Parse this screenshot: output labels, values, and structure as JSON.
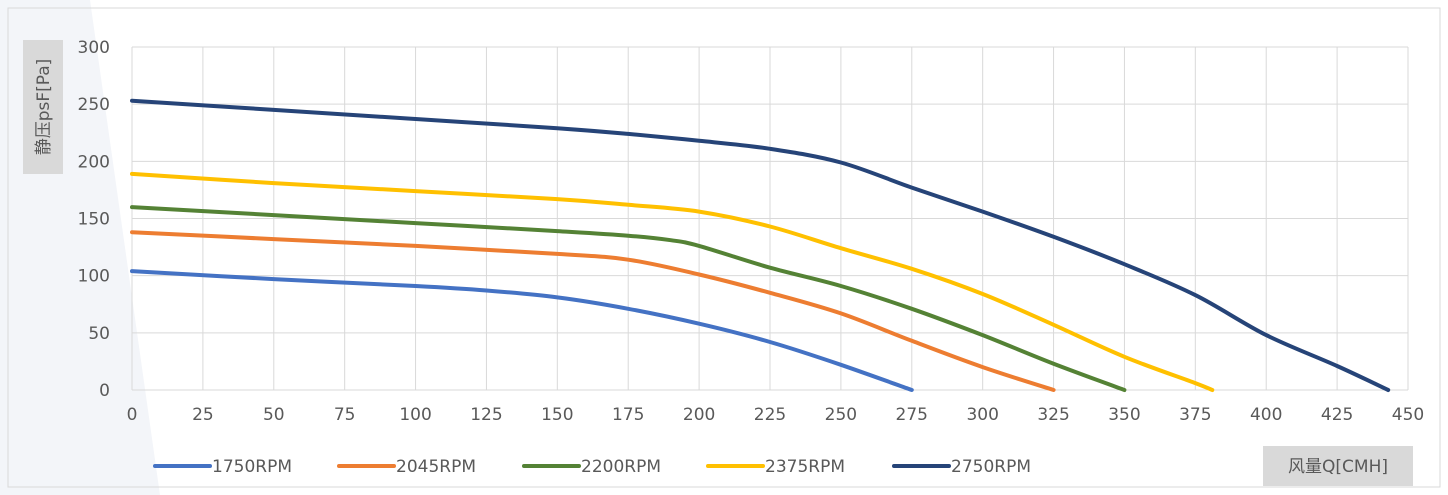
{
  "chart_data": {
    "type": "line",
    "xlabel": "风量Q[CMH]",
    "ylabel": "静压psF[Pa]",
    "xlim": [
      0,
      450
    ],
    "ylim": [
      0,
      300
    ],
    "xticks": [
      0,
      25,
      50,
      75,
      100,
      125,
      150,
      175,
      200,
      225,
      250,
      275,
      300,
      325,
      350,
      375,
      400,
      425,
      450
    ],
    "yticks": [
      0,
      50,
      100,
      150,
      200,
      250,
      300
    ],
    "grid": true,
    "legend_position": "bottom",
    "series": [
      {
        "name": "1750RPM",
        "color": "#4472C4",
        "points": [
          [
            0,
            104
          ],
          [
            50,
            97
          ],
          [
            100,
            91
          ],
          [
            125,
            87
          ],
          [
            150,
            81
          ],
          [
            175,
            71
          ],
          [
            200,
            58
          ],
          [
            225,
            42
          ],
          [
            250,
            22
          ],
          [
            275,
            0
          ]
        ]
      },
      {
        "name": "2045RPM",
        "color": "#ED7D31",
        "points": [
          [
            0,
            138
          ],
          [
            50,
            132
          ],
          [
            100,
            126
          ],
          [
            150,
            119
          ],
          [
            175,
            114
          ],
          [
            200,
            101
          ],
          [
            225,
            85
          ],
          [
            250,
            67
          ],
          [
            275,
            43
          ],
          [
            300,
            20
          ],
          [
            325,
            0
          ]
        ]
      },
      {
        "name": "2200RPM",
        "color": "#548235",
        "points": [
          [
            0,
            160
          ],
          [
            50,
            153
          ],
          [
            100,
            146
          ],
          [
            150,
            139
          ],
          [
            175,
            135
          ],
          [
            190,
            131
          ],
          [
            200,
            126
          ],
          [
            225,
            107
          ],
          [
            250,
            91
          ],
          [
            275,
            71
          ],
          [
            300,
            48
          ],
          [
            325,
            23
          ],
          [
            350,
            0
          ]
        ]
      },
      {
        "name": "2375RPM",
        "color": "#FFC000",
        "points": [
          [
            0,
            189
          ],
          [
            50,
            181
          ],
          [
            100,
            174
          ],
          [
            150,
            167
          ],
          [
            175,
            162
          ],
          [
            200,
            156
          ],
          [
            225,
            143
          ],
          [
            250,
            124
          ],
          [
            275,
            106
          ],
          [
            300,
            84
          ],
          [
            325,
            57
          ],
          [
            350,
            29
          ],
          [
            375,
            6
          ],
          [
            381,
            0
          ]
        ]
      },
      {
        "name": "2750RPM",
        "color": "#264478",
        "points": [
          [
            0,
            253
          ],
          [
            50,
            245
          ],
          [
            100,
            237
          ],
          [
            150,
            229
          ],
          [
            175,
            224
          ],
          [
            200,
            218
          ],
          [
            225,
            211
          ],
          [
            250,
            199
          ],
          [
            275,
            177
          ],
          [
            300,
            156
          ],
          [
            325,
            134
          ],
          [
            350,
            110
          ],
          [
            375,
            83
          ],
          [
            400,
            48
          ],
          [
            425,
            21
          ],
          [
            443,
            0
          ]
        ]
      }
    ]
  }
}
